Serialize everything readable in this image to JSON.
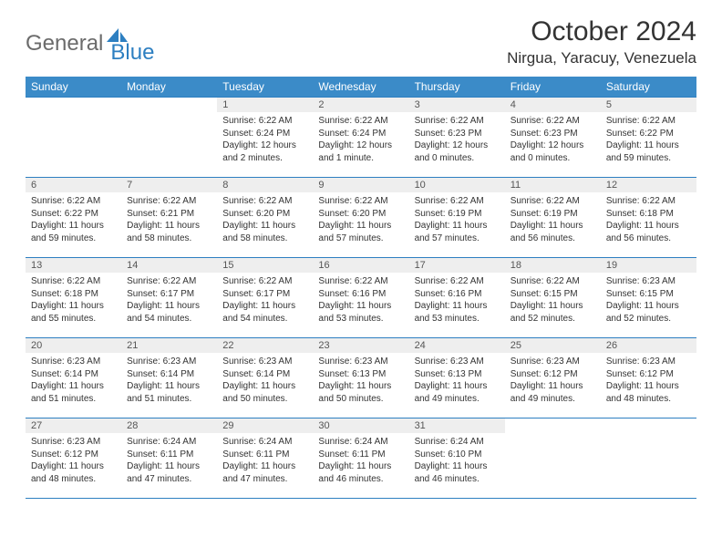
{
  "brand": {
    "part1": "General",
    "part2": "Blue"
  },
  "title": "October 2024",
  "location": "Nirgua, Yaracuy, Venezuela",
  "colors": {
    "header_bg": "#3b8bc8",
    "header_fg": "#ffffff",
    "border": "#2d7fc1",
    "daynum_bg": "#eeeeee",
    "text": "#333333",
    "brand_gray": "#6b6b6b",
    "brand_blue": "#2d7fc1"
  },
  "weekdays": [
    "Sunday",
    "Monday",
    "Tuesday",
    "Wednesday",
    "Thursday",
    "Friday",
    "Saturday"
  ],
  "weeks": [
    [
      null,
      null,
      {
        "n": "1",
        "sunrise": "6:22 AM",
        "sunset": "6:24 PM",
        "daylight": "12 hours and 2 minutes."
      },
      {
        "n": "2",
        "sunrise": "6:22 AM",
        "sunset": "6:24 PM",
        "daylight": "12 hours and 1 minute."
      },
      {
        "n": "3",
        "sunrise": "6:22 AM",
        "sunset": "6:23 PM",
        "daylight": "12 hours and 0 minutes."
      },
      {
        "n": "4",
        "sunrise": "6:22 AM",
        "sunset": "6:23 PM",
        "daylight": "12 hours and 0 minutes."
      },
      {
        "n": "5",
        "sunrise": "6:22 AM",
        "sunset": "6:22 PM",
        "daylight": "11 hours and 59 minutes."
      }
    ],
    [
      {
        "n": "6",
        "sunrise": "6:22 AM",
        "sunset": "6:22 PM",
        "daylight": "11 hours and 59 minutes."
      },
      {
        "n": "7",
        "sunrise": "6:22 AM",
        "sunset": "6:21 PM",
        "daylight": "11 hours and 58 minutes."
      },
      {
        "n": "8",
        "sunrise": "6:22 AM",
        "sunset": "6:20 PM",
        "daylight": "11 hours and 58 minutes."
      },
      {
        "n": "9",
        "sunrise": "6:22 AM",
        "sunset": "6:20 PM",
        "daylight": "11 hours and 57 minutes."
      },
      {
        "n": "10",
        "sunrise": "6:22 AM",
        "sunset": "6:19 PM",
        "daylight": "11 hours and 57 minutes."
      },
      {
        "n": "11",
        "sunrise": "6:22 AM",
        "sunset": "6:19 PM",
        "daylight": "11 hours and 56 minutes."
      },
      {
        "n": "12",
        "sunrise": "6:22 AM",
        "sunset": "6:18 PM",
        "daylight": "11 hours and 56 minutes."
      }
    ],
    [
      {
        "n": "13",
        "sunrise": "6:22 AM",
        "sunset": "6:18 PM",
        "daylight": "11 hours and 55 minutes."
      },
      {
        "n": "14",
        "sunrise": "6:22 AM",
        "sunset": "6:17 PM",
        "daylight": "11 hours and 54 minutes."
      },
      {
        "n": "15",
        "sunrise": "6:22 AM",
        "sunset": "6:17 PM",
        "daylight": "11 hours and 54 minutes."
      },
      {
        "n": "16",
        "sunrise": "6:22 AM",
        "sunset": "6:16 PM",
        "daylight": "11 hours and 53 minutes."
      },
      {
        "n": "17",
        "sunrise": "6:22 AM",
        "sunset": "6:16 PM",
        "daylight": "11 hours and 53 minutes."
      },
      {
        "n": "18",
        "sunrise": "6:22 AM",
        "sunset": "6:15 PM",
        "daylight": "11 hours and 52 minutes."
      },
      {
        "n": "19",
        "sunrise": "6:23 AM",
        "sunset": "6:15 PM",
        "daylight": "11 hours and 52 minutes."
      }
    ],
    [
      {
        "n": "20",
        "sunrise": "6:23 AM",
        "sunset": "6:14 PM",
        "daylight": "11 hours and 51 minutes."
      },
      {
        "n": "21",
        "sunrise": "6:23 AM",
        "sunset": "6:14 PM",
        "daylight": "11 hours and 51 minutes."
      },
      {
        "n": "22",
        "sunrise": "6:23 AM",
        "sunset": "6:14 PM",
        "daylight": "11 hours and 50 minutes."
      },
      {
        "n": "23",
        "sunrise": "6:23 AM",
        "sunset": "6:13 PM",
        "daylight": "11 hours and 50 minutes."
      },
      {
        "n": "24",
        "sunrise": "6:23 AM",
        "sunset": "6:13 PM",
        "daylight": "11 hours and 49 minutes."
      },
      {
        "n": "25",
        "sunrise": "6:23 AM",
        "sunset": "6:12 PM",
        "daylight": "11 hours and 49 minutes."
      },
      {
        "n": "26",
        "sunrise": "6:23 AM",
        "sunset": "6:12 PM",
        "daylight": "11 hours and 48 minutes."
      }
    ],
    [
      {
        "n": "27",
        "sunrise": "6:23 AM",
        "sunset": "6:12 PM",
        "daylight": "11 hours and 48 minutes."
      },
      {
        "n": "28",
        "sunrise": "6:24 AM",
        "sunset": "6:11 PM",
        "daylight": "11 hours and 47 minutes."
      },
      {
        "n": "29",
        "sunrise": "6:24 AM",
        "sunset": "6:11 PM",
        "daylight": "11 hours and 47 minutes."
      },
      {
        "n": "30",
        "sunrise": "6:24 AM",
        "sunset": "6:11 PM",
        "daylight": "11 hours and 46 minutes."
      },
      {
        "n": "31",
        "sunrise": "6:24 AM",
        "sunset": "6:10 PM",
        "daylight": "11 hours and 46 minutes."
      },
      null,
      null
    ]
  ],
  "labels": {
    "sunrise": "Sunrise:",
    "sunset": "Sunset:",
    "daylight": "Daylight:"
  }
}
